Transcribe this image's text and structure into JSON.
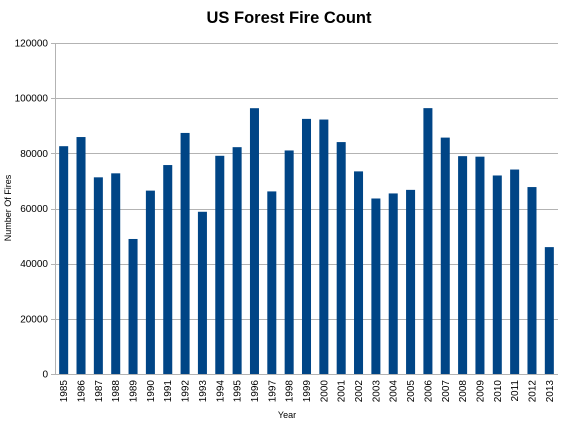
{
  "chart_data": {
    "type": "bar",
    "title": "US Forest Fire Count",
    "xlabel": "Year",
    "ylabel": "Number Of Fires",
    "ylim": [
      0,
      120000
    ],
    "yticks": [
      "0",
      "20000",
      "40000",
      "60000",
      "80000",
      "100000",
      "120000"
    ],
    "grid": true,
    "bar_color": "#004586",
    "categories": [
      "1985",
      "1986",
      "1987",
      "1988",
      "1989",
      "1990",
      "1991",
      "1992",
      "1993",
      "1994",
      "1995",
      "1996",
      "1997",
      "1998",
      "1999",
      "2000",
      "2001",
      "2002",
      "2003",
      "2004",
      "2005",
      "2006",
      "2007",
      "2008",
      "2009",
      "2010",
      "2011",
      "2012",
      "2013"
    ],
    "values": [
      82591,
      85907,
      71300,
      72750,
      48949,
      66481,
      75754,
      87394,
      58810,
      79107,
      82234,
      96363,
      66196,
      81043,
      92487,
      92250,
      84079,
      73457,
      63629,
      65461,
      66753,
      96385,
      85705,
      78979,
      78792,
      71971,
      74126,
      67774,
      46000
    ]
  }
}
